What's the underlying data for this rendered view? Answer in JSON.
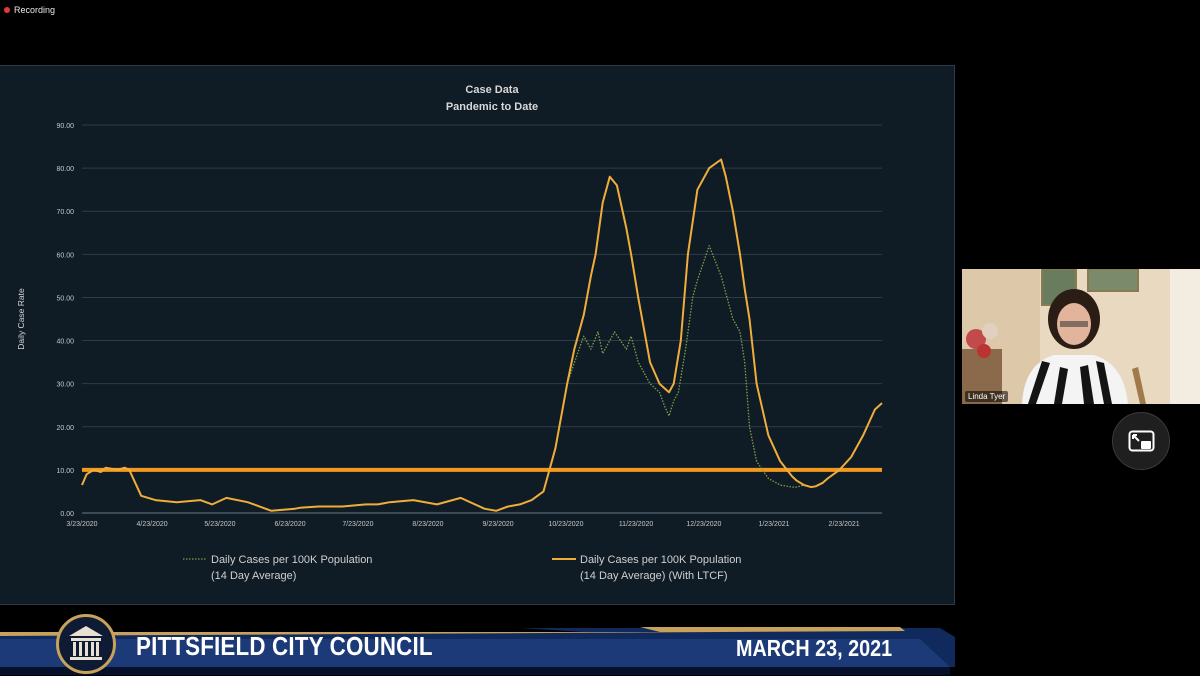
{
  "recording": {
    "label": "Recording"
  },
  "slide": {
    "title": "Case Data",
    "subtitle": "Pandemic to Date",
    "ylabel": "Daily Case Rate",
    "legend": [
      {
        "line1": "Daily Cases per 100K Population",
        "line2": "(14 Day Average)",
        "style": "dotted"
      },
      {
        "line1": "Daily Cases per 100K Population",
        "line2": "(14 Day Average) (With LTCF)",
        "style": "solid"
      }
    ]
  },
  "chart_data": {
    "type": "line",
    "title": "Case Data",
    "subtitle": "Pandemic to Date",
    "xlabel": "",
    "ylabel": "Daily Case Rate",
    "ylim": [
      0,
      90
    ],
    "yticks": [
      "0.00",
      "10.00",
      "20.00",
      "30.00",
      "40.00",
      "50.00",
      "60.00",
      "70.00",
      "80.00",
      "90.00"
    ],
    "xticks": [
      "3/23/2020",
      "4/23/2020",
      "5/23/2020",
      "6/23/2020",
      "7/23/2020",
      "8/23/2020",
      "9/23/2020",
      "10/23/2020",
      "11/23/2020",
      "12/23/2020",
      "1/23/2021",
      "2/23/2021"
    ],
    "grid": true,
    "legend_position": "bottom",
    "threshold": {
      "value": 10,
      "color": "#f39a1e"
    },
    "series": [
      {
        "name": "Daily Cases per 100K Population (14 Day Average)",
        "style": "dotted",
        "color": "#7fa04a",
        "x": [
          0,
          2,
          5,
          8,
          10,
          15,
          18,
          20,
          25,
          31,
          40,
          50,
          55,
          61,
          70,
          80,
          90,
          92,
          100,
          110,
          120,
          125,
          130,
          140,
          150,
          160,
          170,
          175,
          180,
          185,
          190,
          195,
          200,
          205,
          210,
          212,
          215,
          218,
          220,
          225,
          230,
          232,
          235,
          240,
          244,
          246,
          248,
          250,
          252,
          255,
          258,
          260,
          265,
          270,
          275,
          278,
          280,
          282,
          285,
          290,
          295,
          300,
          302,
          305,
          308,
          310,
          313,
          315,
          320,
          325,
          330,
          335,
          338
        ],
        "y": [
          6.5,
          9,
          10,
          9.5,
          10.5,
          10,
          10.5,
          10,
          4,
          3,
          2.5,
          3,
          2,
          3.5,
          2.5,
          0.5,
          1,
          1.2,
          1.5,
          1.5,
          2,
          2,
          2.5,
          3,
          2,
          3.5,
          1,
          0.5,
          1.5,
          2,
          3,
          5,
          15,
          30,
          38,
          41,
          38,
          42,
          37,
          42,
          38,
          41,
          35,
          30,
          28,
          25,
          22.5,
          26,
          28,
          38,
          50,
          54,
          62,
          55,
          45,
          42,
          35,
          20,
          12,
          8,
          6.5,
          6,
          6,
          6.5,
          6,
          6.2,
          7,
          8,
          10,
          13,
          18,
          24,
          25.5
        ]
      },
      {
        "name": "Daily Cases per 100K Population (14 Day Average) (With LTCF)",
        "style": "solid",
        "color": "#f0ad3a",
        "x": [
          0,
          2,
          5,
          8,
          10,
          15,
          18,
          20,
          25,
          31,
          40,
          50,
          55,
          61,
          70,
          80,
          90,
          92,
          100,
          110,
          120,
          125,
          130,
          140,
          150,
          160,
          170,
          175,
          180,
          185,
          190,
          195,
          200,
          205,
          208,
          212,
          215,
          217,
          220,
          223,
          226,
          230,
          232,
          235,
          240,
          244,
          246,
          248,
          250,
          253,
          256,
          260,
          265,
          270,
          272,
          275,
          278,
          280,
          282,
          285,
          290,
          295,
          300,
          302,
          305,
          308,
          310,
          313,
          315,
          320,
          325,
          330,
          335,
          338
        ],
        "y": [
          6.5,
          9,
          10,
          9.5,
          10.5,
          10,
          10.5,
          10,
          4,
          3,
          2.5,
          3,
          2,
          3.5,
          2.5,
          0.5,
          1,
          1.2,
          1.5,
          1.5,
          2,
          2,
          2.5,
          3,
          2,
          3.5,
          1,
          0.5,
          1.5,
          2,
          3,
          5,
          15,
          30,
          38,
          46,
          55,
          60,
          72,
          78,
          76,
          66,
          60,
          50,
          35,
          30,
          29,
          28,
          30,
          40,
          60,
          75,
          80,
          82,
          78,
          70,
          60,
          52,
          45,
          30,
          18,
          12,
          8.5,
          7.5,
          6.5,
          6,
          6.2,
          7,
          8,
          10,
          13,
          18,
          24,
          25.5
        ]
      }
    ]
  },
  "camera": {
    "name": "Linda Tyer"
  },
  "lower_third": {
    "title": "PITTSFIELD CITY COUNCIL",
    "date": "MARCH 23, 2021"
  },
  "colors": {
    "slide_bg": "#0f1b25",
    "threshold": "#f39a1e",
    "banner": "#1d3a78",
    "gold": "#c8a25a"
  }
}
